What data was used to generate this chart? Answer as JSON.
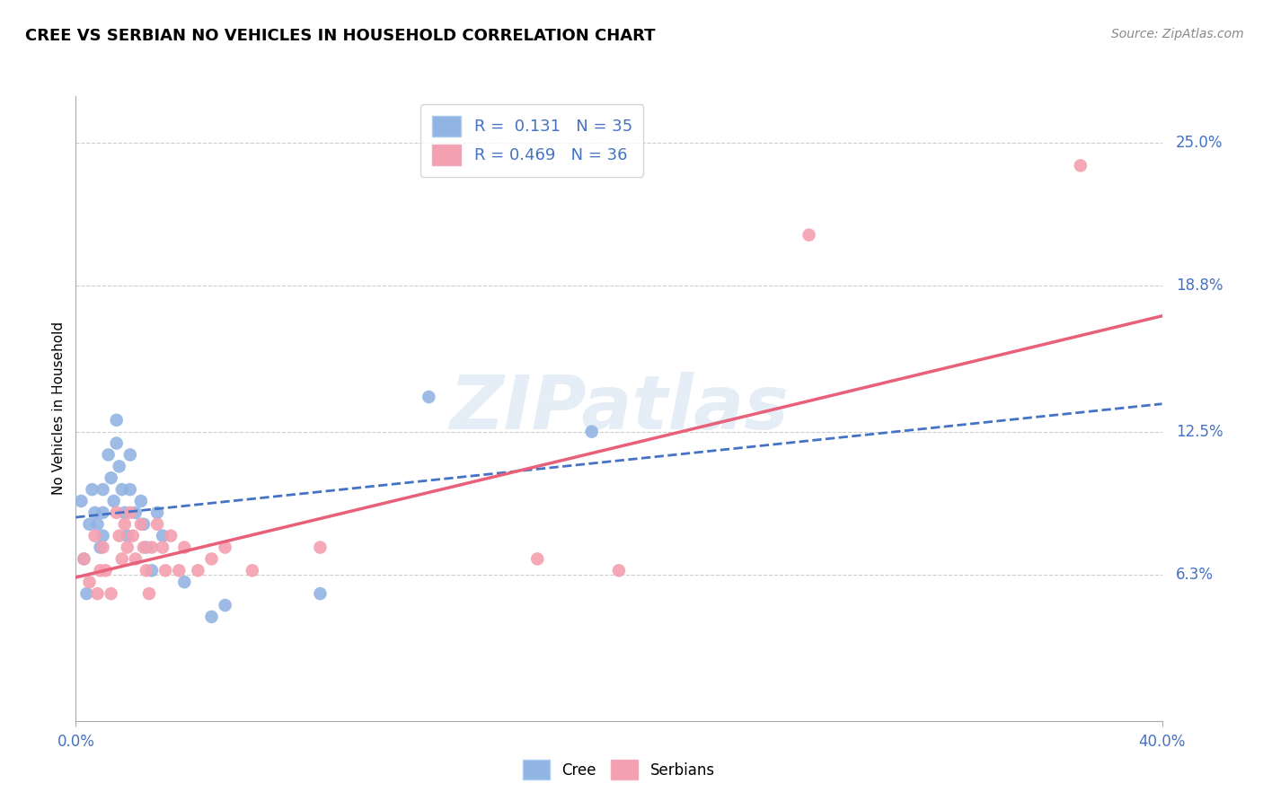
{
  "title": "CREE VS SERBIAN NO VEHICLES IN HOUSEHOLD CORRELATION CHART",
  "source": "Source: ZipAtlas.com",
  "ylabel": "No Vehicles in Household",
  "xlim": [
    0.0,
    0.4
  ],
  "ylim": [
    0.0,
    0.27
  ],
  "ytick_labels_right": [
    "6.3%",
    "12.5%",
    "18.8%",
    "25.0%"
  ],
  "ytick_vals_right": [
    0.063,
    0.125,
    0.188,
    0.25
  ],
  "cree_R": "0.131",
  "cree_N": "35",
  "serbian_R": "0.469",
  "serbian_N": "36",
  "cree_color": "#92b4e3",
  "serbian_color": "#f4a0b0",
  "cree_line_color": "#4472C4",
  "serbian_line_color": "#E8607A",
  "background_color": "#ffffff",
  "grid_color": "#cccccc",
  "watermark": "ZIPatlas",
  "title_fontsize": 13,
  "cree_x": [
    0.002,
    0.003,
    0.004,
    0.005,
    0.006,
    0.007,
    0.008,
    0.009,
    0.01,
    0.01,
    0.01,
    0.012,
    0.013,
    0.014,
    0.015,
    0.015,
    0.016,
    0.017,
    0.018,
    0.019,
    0.02,
    0.02,
    0.022,
    0.024,
    0.025,
    0.026,
    0.028,
    0.03,
    0.032,
    0.04,
    0.05,
    0.055,
    0.09,
    0.13,
    0.19
  ],
  "cree_y": [
    0.095,
    0.07,
    0.055,
    0.085,
    0.1,
    0.09,
    0.085,
    0.075,
    0.1,
    0.09,
    0.08,
    0.115,
    0.105,
    0.095,
    0.13,
    0.12,
    0.11,
    0.1,
    0.09,
    0.08,
    0.115,
    0.1,
    0.09,
    0.095,
    0.085,
    0.075,
    0.065,
    0.09,
    0.08,
    0.06,
    0.045,
    0.05,
    0.055,
    0.14,
    0.125
  ],
  "serbian_x": [
    0.003,
    0.005,
    0.007,
    0.008,
    0.009,
    0.01,
    0.011,
    0.013,
    0.015,
    0.016,
    0.017,
    0.018,
    0.019,
    0.02,
    0.021,
    0.022,
    0.024,
    0.025,
    0.026,
    0.027,
    0.028,
    0.03,
    0.032,
    0.033,
    0.035,
    0.038,
    0.04,
    0.045,
    0.05,
    0.055,
    0.065,
    0.09,
    0.17,
    0.2,
    0.27,
    0.37
  ],
  "serbian_y": [
    0.07,
    0.06,
    0.08,
    0.055,
    0.065,
    0.075,
    0.065,
    0.055,
    0.09,
    0.08,
    0.07,
    0.085,
    0.075,
    0.09,
    0.08,
    0.07,
    0.085,
    0.075,
    0.065,
    0.055,
    0.075,
    0.085,
    0.075,
    0.065,
    0.08,
    0.065,
    0.075,
    0.065,
    0.07,
    0.075,
    0.065,
    0.075,
    0.07,
    0.065,
    0.21,
    0.24
  ],
  "cree_line_x0": 0.0,
  "cree_line_y0": 0.088,
  "cree_line_x1": 0.4,
  "cree_line_y1": 0.137,
  "serbian_line_x0": 0.0,
  "serbian_line_y0": 0.062,
  "serbian_line_x1": 0.4,
  "serbian_line_y1": 0.175
}
